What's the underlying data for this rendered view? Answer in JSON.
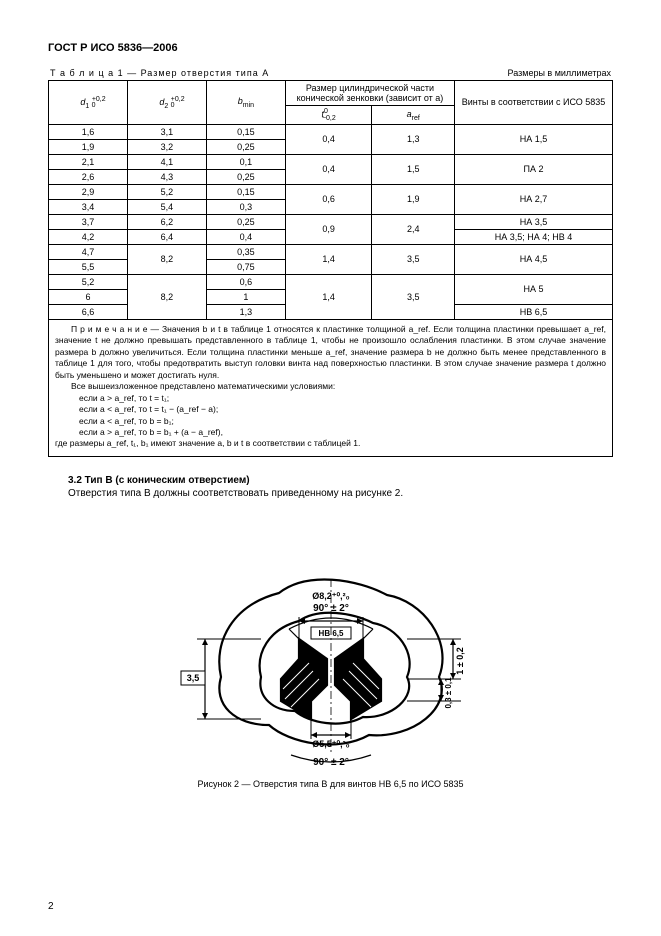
{
  "header": "ГОСТ Р ИСО 5836—2006",
  "tableCaptionLeft": "Т а б л и ц а  1 — Размер отверстия типа А",
  "tableCaptionRight": "Размеры в миллиметрах",
  "colHead": {
    "d1": "d",
    "d1sub": "1",
    "d1tol": "+0,2\n0",
    "d2": "d",
    "d2sub": "2",
    "d2tol": "+0,2\n0",
    "bmin": "b",
    "bminsub": "min",
    "cylTop": "Размер цилиндрической части конической зенковки (зависит от а)",
    "t": "t",
    "ttol": "0\n−0,2",
    "aref": "a",
    "arefsub": "ref",
    "screws": "Винты в соответствии с ИСО 5835"
  },
  "rows": [
    {
      "d1": "1,6",
      "d2": "3,1",
      "b": "0,15",
      "t": "0,4",
      "a": "1,3",
      "screw": "НА 1,5",
      "tSpan": 2,
      "aSpan": 2,
      "sSpan": 2
    },
    {
      "d1": "1,9",
      "d2": "3,2",
      "b": "0,25"
    },
    {
      "d1": "2,1",
      "d2": "4,1",
      "b": "0,1",
      "t": "0,4",
      "a": "1,5",
      "screw": "ПА 2",
      "tSpan": 2,
      "aSpan": 2,
      "sSpan": 2
    },
    {
      "d1": "2,6",
      "d2": "4,3",
      "b": "0,25"
    },
    {
      "d1": "2,9",
      "d2": "5,2",
      "b": "0,15",
      "t": "0,6",
      "a": "1,9",
      "screw": "НА 2,7",
      "tSpan": 2,
      "aSpan": 2,
      "sSpan": 2
    },
    {
      "d1": "3,4",
      "d2": "5,4",
      "b": "0,3"
    },
    {
      "d1": "3,7",
      "d2": "6,2",
      "b": "0,25",
      "t": "0,9",
      "a": "2,4",
      "screw": "НА 3,5",
      "tSpan": 2,
      "aSpan": 2,
      "sSpan": 1
    },
    {
      "d1": "4,2",
      "d2": "6,4",
      "b": "0,4",
      "screw": "НА 3,5; НА 4; НВ 4",
      "sSpan": 1
    },
    {
      "d1": "4,7",
      "d2": "8,2",
      "b": "0,35",
      "t": "1,4",
      "a": "3,5",
      "screw": "НА 4,5",
      "d2Span": 2,
      "tSpan": 2,
      "aSpan": 2,
      "sSpan": 2
    },
    {
      "d1": "5,5",
      "b": "0,75"
    },
    {
      "d1": "5,2",
      "d2": "8,2",
      "b": "0,6",
      "t": "1,4",
      "a": "3,5",
      "screw": "НА 5",
      "d2Span": 3,
      "tSpan": 3,
      "aSpan": 3,
      "sSpan": 2
    },
    {
      "d1": "6",
      "b": "1"
    },
    {
      "d1": "6,6",
      "b": "1,3",
      "screw": "НВ 6,5",
      "sSpan": 1
    }
  ],
  "note": {
    "lead": "П р и м е ч а н и е — Значения b и t в таблице 1 относятся к пластинке толщиной a_ref. Если толщина пластинки превышает a_ref, значение t не должно превышать представленного в таблице 1, чтобы не произошло ослабления пластинки. В этом случае значение размера b должно увеличиться. Если толщина пластинки меньше a_ref, значение размера b не должно быть менее представленного в таблице 1 для того, чтобы предотвратить выступ головки винта над поверхностью пластинки. В этом случае значение размера t должно быть уменьшено и может достигать нуля.",
    "mathLead": "Все вышеизложенное представлено математическими условиями:",
    "c1": "если a > a_ref, то t = t₁;",
    "c2": "если a < a_ref, то t = t₁ − (a_ref − a);",
    "c3": "если a < a_ref, то b = b₁;",
    "c4": "если a > a_ref, то b = b₁ + (a − a_ref),",
    "tail": "где размеры a_ref, t₁, b₁ имеют значение a, b и t в соответствии с таблицей 1."
  },
  "section": {
    "head": "3.2  Тип В (с коническим отверстием)",
    "body": "Отверстия типа В должны соответствовать приведенному на рисунке 2."
  },
  "figure": {
    "angleTop": "90° ± 2°",
    "topDim": "Ø8,2⁺⁰,²₀",
    "hb": "НВ 6,5",
    "right1": "1 ± 0,2",
    "right2": "0,3 ± 0,1",
    "left": "3,5",
    "bottomDim": "Ø5,5⁺⁰,²₀",
    "angleBottom": "90° ± 2°",
    "caption": "Рисунок 2 — Отверстия типа В для винтов НВ 6,5 по ИСО 5835"
  },
  "pageNum": "2"
}
